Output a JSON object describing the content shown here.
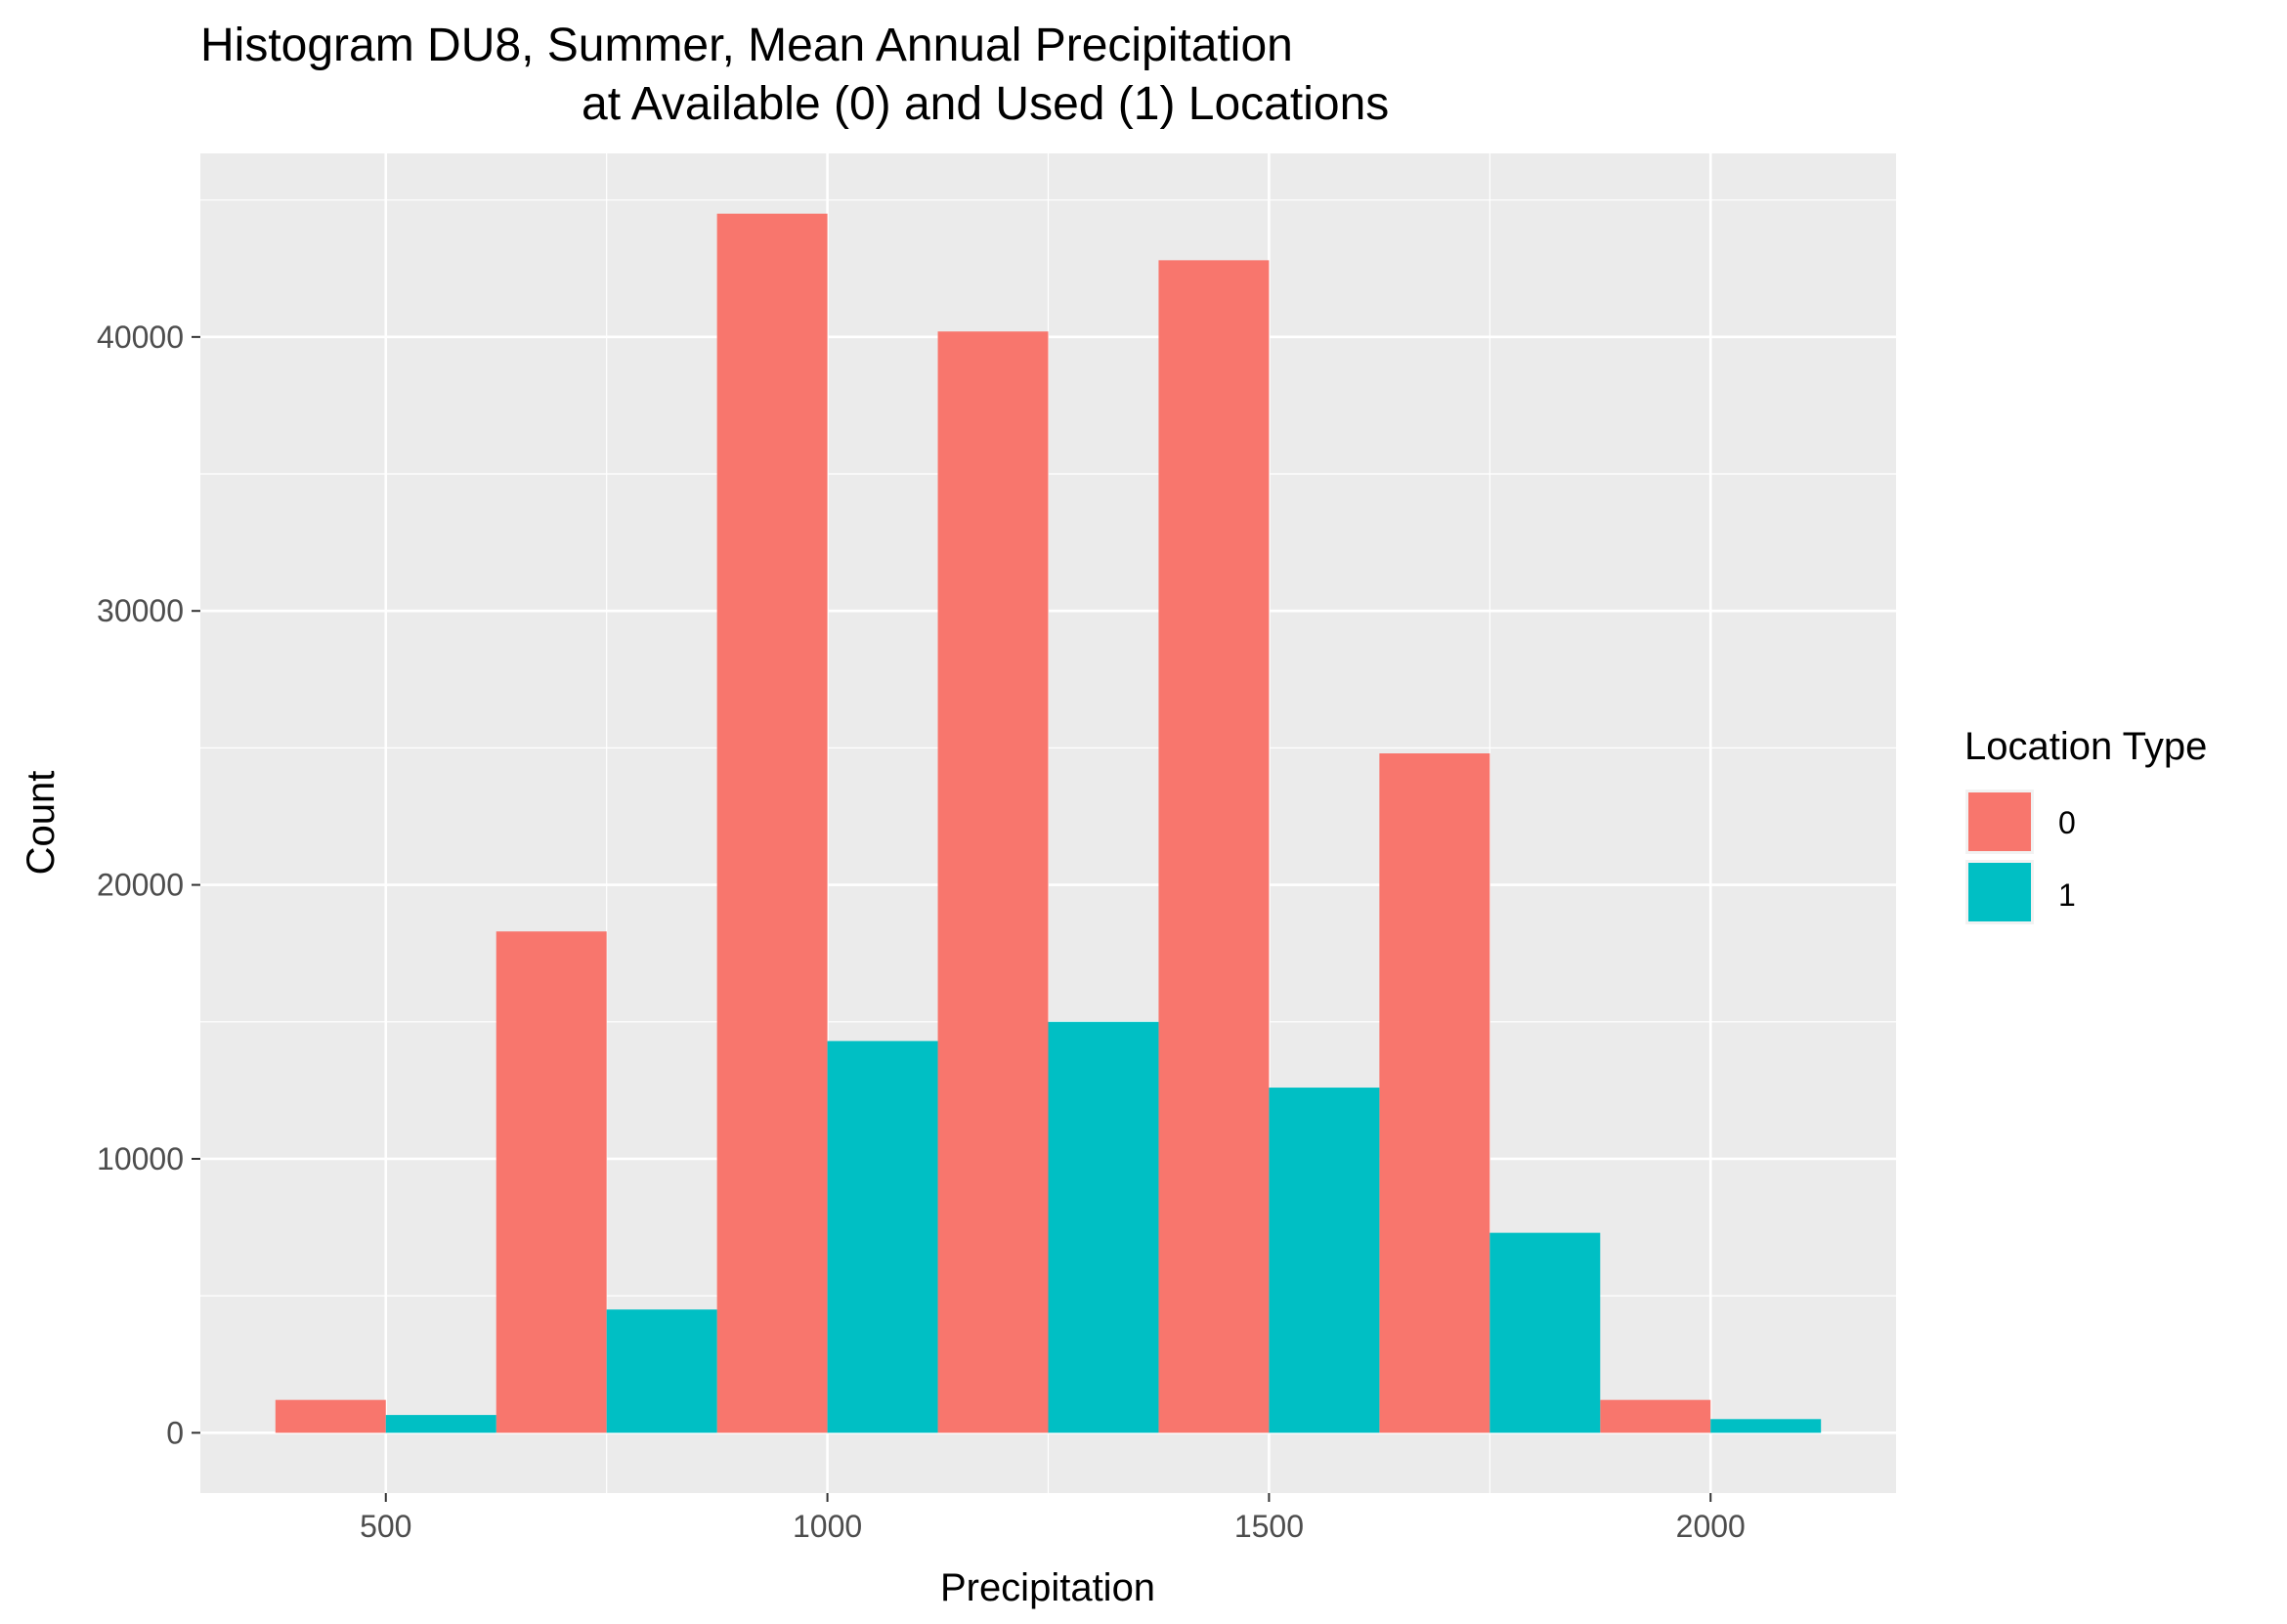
{
  "chart_data": {
    "type": "bar",
    "title_lines": [
      "Histogram DU8, Summer, Mean Annual Precipitation",
      "at Available (0) and Used (1) Locations"
    ],
    "xlabel": "Precipitation",
    "ylabel": "Count",
    "xlim": [
      290,
      2210
    ],
    "ylim": [
      -2200,
      46700
    ],
    "x_ticks": [
      500,
      1000,
      1500,
      2000
    ],
    "y_ticks": [
      0,
      10000,
      20000,
      30000,
      40000
    ],
    "bin_width": 250,
    "bin_centers": [
      500,
      750,
      1000,
      1250,
      1500,
      1750,
      2000
    ],
    "grid": true,
    "legend": {
      "title": "Location Type",
      "position": "right"
    },
    "colors": {
      "0": "#f8766d",
      "1": "#00bfc4",
      "panel": "#ebebeb",
      "grid": "#ffffff"
    },
    "series": [
      {
        "name": "0",
        "values": [
          1200,
          18300,
          44500,
          40200,
          42800,
          24800,
          1200
        ]
      },
      {
        "name": "1",
        "values": [
          650,
          4500,
          14300,
          15000,
          12600,
          7300,
          500
        ]
      }
    ]
  }
}
